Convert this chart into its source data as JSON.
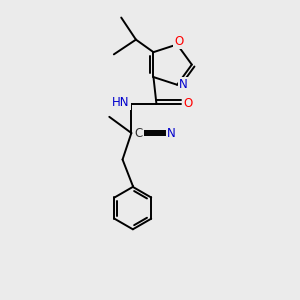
{
  "background_color": "#ebebeb",
  "bond_color": "#000000",
  "atom_colors": {
    "O": "#ff0000",
    "N": "#0000cd",
    "C": "#333333",
    "H": "#5f9ea0"
  },
  "figsize": [
    3.0,
    3.0
  ],
  "dpi": 100
}
